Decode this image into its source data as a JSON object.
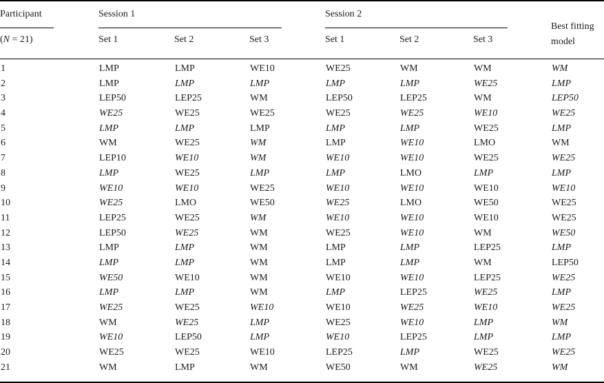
{
  "header": {
    "participant_label": "Participant",
    "participant_sub_open": "(",
    "participant_sub_n": "N",
    "participant_sub_rest": " = 21)",
    "session1_label": "Session 1",
    "session2_label": "Session 2",
    "set_labels": [
      "Set 1",
      "Set 2",
      "Set 3"
    ],
    "best_fitting_label": "Best fitting model"
  },
  "notation": {
    "italic_marker_prefix": "*",
    "model_names_seen": [
      "LMP",
      "WM",
      "LMO",
      "WE10",
      "WE25",
      "WE50",
      "LEP10",
      "LEP25",
      "LEP50"
    ]
  },
  "colors": {
    "text": "#1a1a1a",
    "rule": "#000000",
    "background": "#ffffff"
  },
  "rows": [
    {
      "participant": "1",
      "cells": [
        "LMP",
        "LMP",
        "WE10",
        "WE25",
        "WM",
        "WM",
        "*WM"
      ]
    },
    {
      "participant": "2",
      "cells": [
        "LMP",
        "*LMP",
        "*LMP",
        "*LMP",
        "*LMP",
        "*WE25",
        "*LMP"
      ]
    },
    {
      "participant": "3",
      "cells": [
        "LEP50",
        "LEP25",
        "WM",
        "LEP50",
        "LEP25",
        "WM",
        "*LEP50"
      ]
    },
    {
      "participant": "4",
      "cells": [
        "*WE25",
        "WE25",
        "WE25",
        "WE25",
        "*WE25",
        "*WE10",
        "*WE25"
      ]
    },
    {
      "participant": "5",
      "cells": [
        "*LMP",
        "*LMP",
        "LMP",
        "*LMP",
        "*LMP",
        "WE25",
        "*LMP"
      ]
    },
    {
      "participant": "6",
      "cells": [
        "WM",
        "WE25",
        "*WM",
        "LMP",
        "*WE10",
        "LMO",
        "WM"
      ]
    },
    {
      "participant": "7",
      "cells": [
        "LEP10",
        "*WE10",
        "*WM",
        "*WE10",
        "*WE10",
        "WE25",
        "*WE25"
      ]
    },
    {
      "participant": "8",
      "cells": [
        "*LMP",
        "WE25",
        "*LMP",
        "*LMP",
        "LMO",
        "*LMP",
        "*LMP"
      ]
    },
    {
      "participant": "9",
      "cells": [
        "*WE10",
        "*WE10",
        "WE25",
        "*WE10",
        "*WE10",
        "WE10",
        "*WE10"
      ]
    },
    {
      "participant": "10",
      "cells": [
        "*WE25",
        "LMO",
        "WE50",
        "*WE25",
        "LMO",
        "WE50",
        "WE25"
      ]
    },
    {
      "participant": "11",
      "cells": [
        "LEP25",
        "WE25",
        "*WM",
        "*WE10",
        "*WE10",
        "WE10",
        "WE25"
      ]
    },
    {
      "participant": "12",
      "cells": [
        "LEP50",
        "*WE25",
        "WM",
        "WE25",
        "*WE10",
        "WM",
        "*WE50"
      ]
    },
    {
      "participant": "13",
      "cells": [
        "LMP",
        "*LMP",
        "WM",
        "LMP",
        "*LMP",
        "LEP25",
        "*LMP"
      ]
    },
    {
      "participant": "14",
      "cells": [
        "*LMP",
        "*LMP",
        "WM",
        "LMP",
        "*LMP",
        "WM",
        "LEP50"
      ]
    },
    {
      "participant": "15",
      "cells": [
        "*WE50",
        "WE10",
        "WM",
        "WE10",
        "*WE10",
        "LEP25",
        "*WE25"
      ]
    },
    {
      "participant": "16",
      "cells": [
        "*LMP",
        "*LMP",
        "WM",
        "*LMP",
        "LEP25",
        "*WE25",
        "*LMP"
      ]
    },
    {
      "participant": "17",
      "cells": [
        "*WE25",
        "WE25",
        "*WE10",
        "WE10",
        "*WE25",
        "*WE10",
        "*WE25"
      ]
    },
    {
      "participant": "18",
      "cells": [
        "WM",
        "*WE25",
        "*LMP",
        "WE25",
        "*WE10",
        "*LMP",
        "*WM"
      ]
    },
    {
      "participant": "19",
      "cells": [
        "*WE10",
        "LEP50",
        "*LMP",
        "*WE10",
        "LEP25",
        "*LMP",
        "*LMP"
      ]
    },
    {
      "participant": "20",
      "cells": [
        "WE25",
        "WE25",
        "WE10",
        "LEP25",
        "*LMP",
        "WE25",
        "*WE25"
      ]
    },
    {
      "participant": "21",
      "cells": [
        "WM",
        "LMP",
        "WM",
        "WE50",
        "WM",
        "*WE25",
        "*WM"
      ]
    }
  ]
}
